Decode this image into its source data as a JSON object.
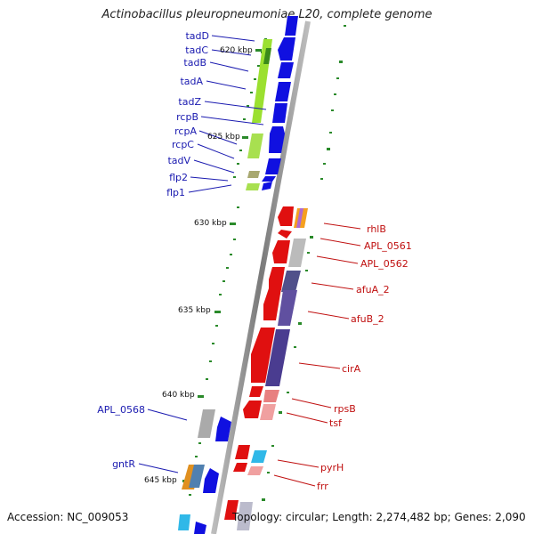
{
  "title": "Actinobacillus pleuropneumoniae L20, complete genome",
  "footer": {
    "accession": "Accession: NC_009053",
    "summary": "Topology: circular; Length: 2,274,482 bp; Genes: 2,090"
  },
  "ticks": [
    "620 kbp",
    "625 kbp",
    "630 kbp",
    "635 kbp",
    "640 kbp",
    "645 kbp"
  ],
  "genes_forward": [
    "tadD",
    "tadC",
    "tadB",
    "tadA",
    "tadZ",
    "rcpB",
    "rcpA",
    "rcpC",
    "tadV",
    "flp2",
    "flp1",
    "APL_0568",
    "gntR"
  ],
  "genes_reverse": [
    "rhlB",
    "APL_0561",
    "APL_0562",
    "afuA_2",
    "afuB_2",
    "cirA",
    "rpsB",
    "tsf",
    "pyrH",
    "frr"
  ],
  "colors": {
    "forward_gene": "#1010e0",
    "reverse_gene": "#e01010",
    "forward_label": "#1a1ab0",
    "reverse_label": "#c01010",
    "backbone": "#8a8a8a",
    "tick": "#2a8a2a"
  }
}
